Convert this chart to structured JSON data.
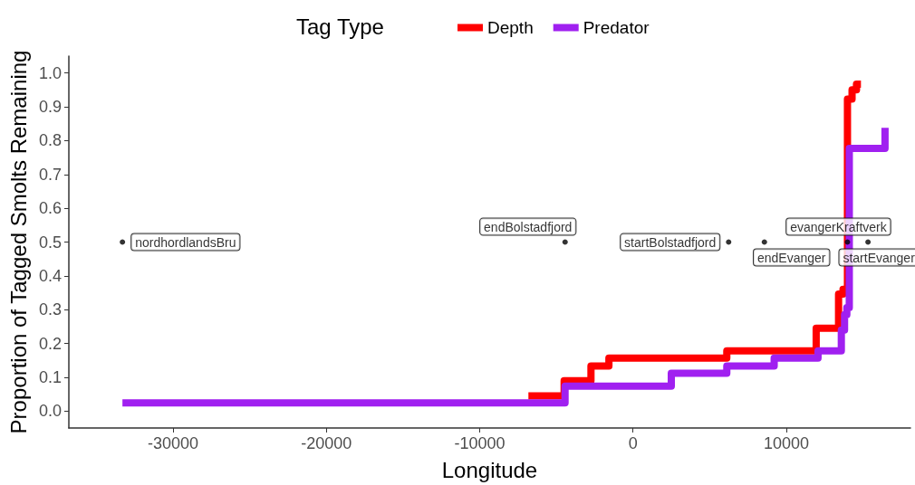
{
  "chart_data": {
    "type": "step",
    "xlabel": "Longitude",
    "ylabel": "Proportion of Tagged Smolts Remaining",
    "legend_title": "Tag Type",
    "xlim": [
      -36800,
      18100
    ],
    "xticks": [
      -30000,
      -20000,
      -10000,
      0,
      10000
    ],
    "ylim": [
      -0.05,
      1.05
    ],
    "yticks": [
      {
        "value": 0,
        "label": "0.0"
      },
      {
        "value": 0.1,
        "label": "0.1"
      },
      {
        "value": 0.2,
        "label": "0.2"
      },
      {
        "value": 0.3,
        "label": "0.3"
      },
      {
        "value": 0.4,
        "label": "0.4"
      },
      {
        "value": 0.5,
        "label": "0.5"
      },
      {
        "value": 0.6,
        "label": "0.6"
      },
      {
        "value": 0.7,
        "label": "0.7"
      },
      {
        "value": 0.8,
        "label": "0.8"
      },
      {
        "value": 0.9,
        "label": "0.9"
      },
      {
        "value": 1,
        "label": "1.0"
      }
    ],
    "grid": false,
    "legend": "top",
    "marker": "none",
    "line_style": "solid",
    "series": [
      {
        "name": "Depth",
        "color": "#ff0000",
        "x": [
          -6820,
          -4490,
          -2740,
          -1570,
          6120,
          11950,
          13410,
          13700,
          13990,
          14290,
          14580,
          14870
        ],
        "values": [
          0.045,
          0.09,
          0.133,
          0.157,
          0.178,
          0.245,
          0.346,
          0.36,
          0.923,
          0.95,
          0.967,
          0.967
        ]
      },
      {
        "name": "Predator",
        "color": "#a020f0",
        "x": [
          -33300,
          -4430,
          2500,
          6120,
          9210,
          12070,
          13590,
          13800,
          13950,
          14110,
          16440
        ],
        "values": [
          0.024,
          0.074,
          0.112,
          0.133,
          0.157,
          0.178,
          0.24,
          0.285,
          0.306,
          0.777,
          0.838
        ]
      },
      {
        "type": "scatter",
        "color": "#000000",
        "x": [
          -33300,
          -4430,
          6240,
          8570,
          13990,
          15330
        ],
        "values": [
          0.5,
          0.5,
          0.5,
          0.5,
          0.5,
          0.5
        ],
        "value_labels": [
          "nordhordlandsBru",
          "endBolstadfjord",
          "startBolstadfjord",
          "endEvanger",
          "evangerKraftverk",
          "startEvanger"
        ]
      }
    ]
  }
}
